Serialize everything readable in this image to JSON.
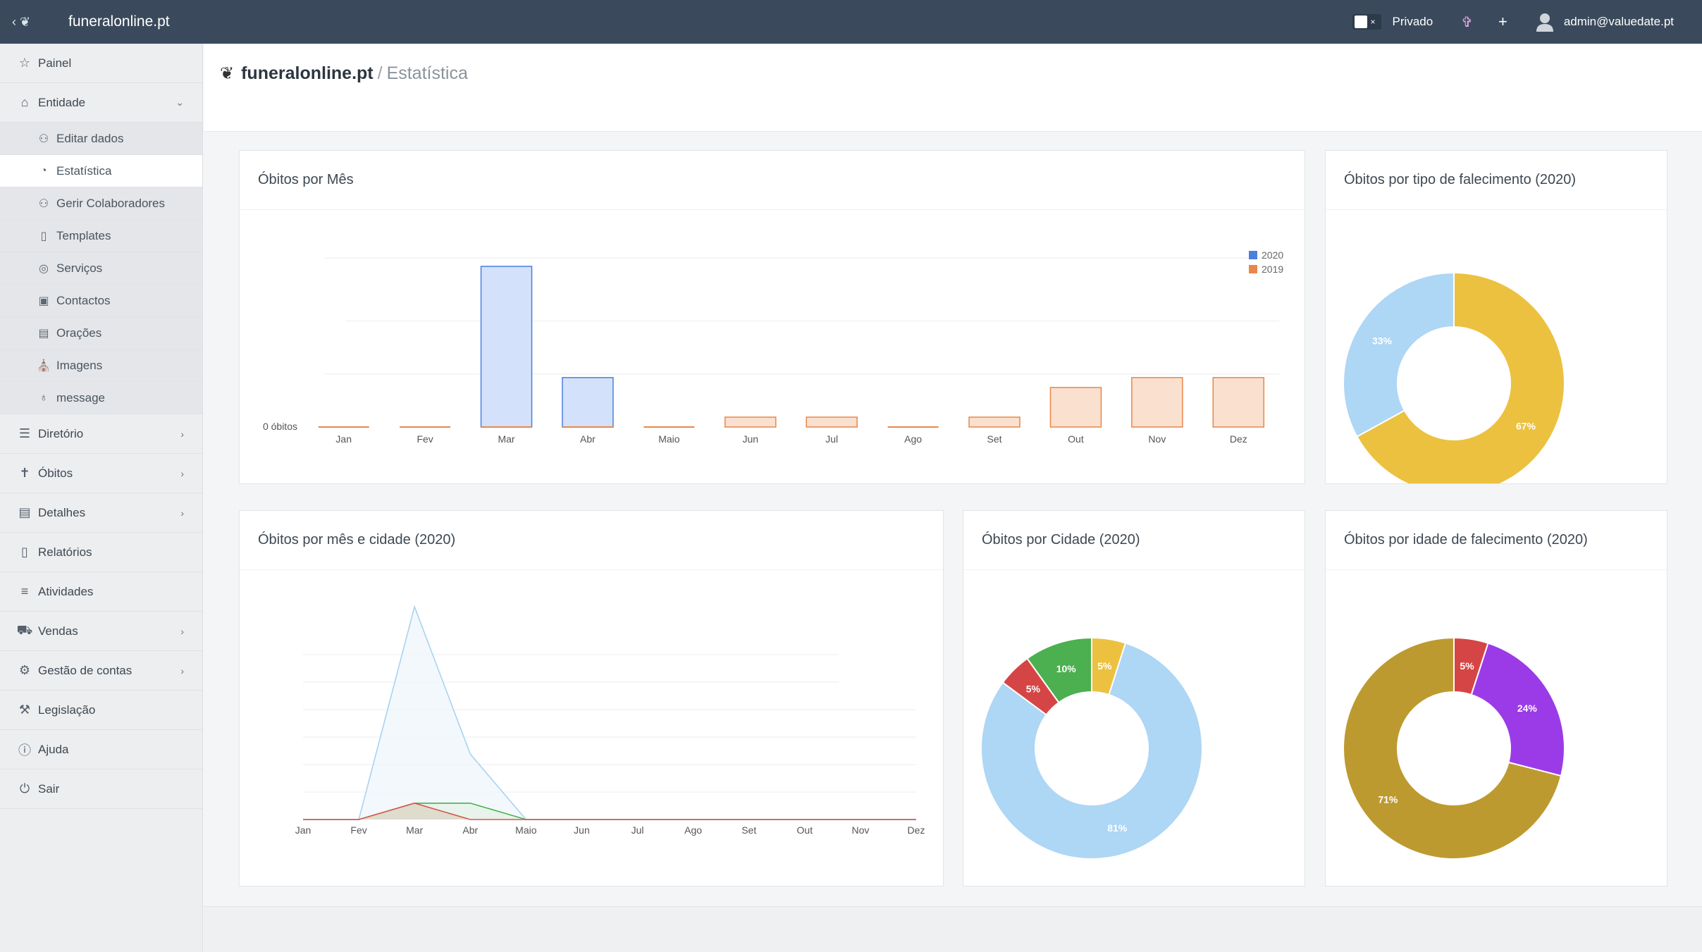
{
  "topbar": {
    "brand": "funeralonline.pt",
    "private_label": "Privado",
    "toggle_x": "×",
    "cross_glyph": "✞",
    "plus_glyph": "+",
    "user_email": "admin@valuedate.pt"
  },
  "sidebar": {
    "items": [
      {
        "label": "Painel",
        "icon": "star-icon"
      },
      {
        "label": "Entidade",
        "icon": "home-icon",
        "chevron": "⌄"
      },
      {
        "label": "Diretório",
        "icon": "signpost-icon",
        "chevron": "›"
      },
      {
        "label": "Óbitos",
        "icon": "cross-icon",
        "chevron": "›"
      },
      {
        "label": "Detalhes",
        "icon": "clipboard-icon",
        "chevron": "›"
      },
      {
        "label": "Relatórios",
        "icon": "document-icon"
      },
      {
        "label": "Atividades",
        "icon": "list-icon"
      },
      {
        "label": "Vendas",
        "icon": "cart-icon",
        "chevron": "›"
      },
      {
        "label": "Gestão de contas",
        "icon": "user-gear-icon",
        "chevron": "›"
      },
      {
        "label": "Legislação",
        "icon": "gavel-icon"
      },
      {
        "label": "Ajuda",
        "icon": "info-icon"
      },
      {
        "label": "Sair",
        "icon": "power-icon"
      }
    ],
    "subitems": [
      {
        "label": "Editar dados",
        "icon": "users-edit-icon"
      },
      {
        "label": "Estatística",
        "icon": "pie-chart-icon",
        "active": true
      },
      {
        "label": "Gerir Colaboradores",
        "icon": "users-icon"
      },
      {
        "label": "Templates",
        "icon": "file-icon"
      },
      {
        "label": "Serviços",
        "icon": "badge-icon"
      },
      {
        "label": "Contactos",
        "icon": "contact-book-icon"
      },
      {
        "label": "Orações",
        "icon": "book-icon"
      },
      {
        "label": "Imagens",
        "icon": "church-icon"
      },
      {
        "label": "message",
        "icon": "bulb-icon"
      }
    ]
  },
  "breadcrumb": {
    "site": "funeralonline.pt",
    "separator": "/",
    "page": "Estatística"
  },
  "cards": {
    "mes": "Óbitos por Mês",
    "tipo": "Óbitos por tipo de falecimento (2020)",
    "mes_cidade": "Óbitos por mês e cidade (2020)",
    "cidade": "Óbitos por Cidade (2020)",
    "idade": "Óbitos por idade de falecimento (2020)"
  },
  "chart_data": [
    {
      "type": "bar",
      "title": "Óbitos por Mês",
      "categories": [
        "Jan",
        "Fev",
        "Mar",
        "Abr",
        "Maio",
        "Jun",
        "Jul",
        "Ago",
        "Set",
        "Out",
        "Nov",
        "Dez"
      ],
      "series": [
        {
          "name": "2020",
          "color": "#4a7fe0",
          "fill": "#d3e1fa",
          "values": [
            0,
            0,
            13,
            4,
            0,
            0,
            0,
            0,
            0,
            0,
            0,
            0
          ]
        },
        {
          "name": "2019",
          "color": "#e8874a",
          "fill": "#fae0cf",
          "values": [
            0,
            0,
            0,
            0,
            0,
            0.8,
            0.8,
            0,
            0.8,
            3.2,
            4,
            4
          ]
        }
      ],
      "ytick_label": "0 óbitos",
      "legend": "top-right"
    },
    {
      "type": "pie",
      "title": "Óbitos por tipo de falecimento (2020)",
      "slices": [
        {
          "value": 67,
          "label": "67%",
          "color": "#ecc140"
        },
        {
          "value": 33,
          "label": "33%",
          "color": "#aed6f5"
        }
      ]
    },
    {
      "type": "area",
      "title": "Óbitos por mês e cidade (2020)",
      "categories": [
        "Jan",
        "Fev",
        "Mar",
        "Abr",
        "Maio",
        "Jun",
        "Jul",
        "Ago",
        "Set",
        "Out",
        "Nov",
        "Dez"
      ],
      "series": [
        {
          "color": "#a9d3f0",
          "fill": "#eef5fb",
          "values": [
            0,
            0,
            13,
            4,
            0,
            0,
            0,
            0,
            0,
            0,
            0,
            0
          ]
        },
        {
          "color": "#4caf50",
          "fill": "#e3f2e4",
          "values": [
            0,
            0,
            1,
            1,
            0,
            0,
            0,
            0,
            0,
            0,
            0,
            0
          ]
        },
        {
          "color": "#d9534f",
          "fill": "#d8d2c0",
          "values": [
            0,
            0,
            1,
            0,
            0,
            0,
            0,
            0,
            0,
            0,
            0,
            0
          ]
        }
      ]
    },
    {
      "type": "pie",
      "title": "Óbitos por Cidade (2020)",
      "slices": [
        {
          "value": 5,
          "label": "5%",
          "color": "#ecc140"
        },
        {
          "value": 81,
          "label": "81%",
          "color": "#aed6f5"
        },
        {
          "value": 5,
          "label": "5%",
          "color": "#d64545"
        },
        {
          "value": 10,
          "label": "10%",
          "color": "#4caf50"
        }
      ]
    },
    {
      "type": "pie",
      "title": "Óbitos por idade de falecimento (2020)",
      "slices": [
        {
          "value": 5,
          "label": "5%",
          "color": "#d64545"
        },
        {
          "value": 24,
          "label": "24%",
          "color": "#9b3be8"
        },
        {
          "value": 71,
          "label": "71%",
          "color": "#bd9a30"
        }
      ]
    }
  ]
}
